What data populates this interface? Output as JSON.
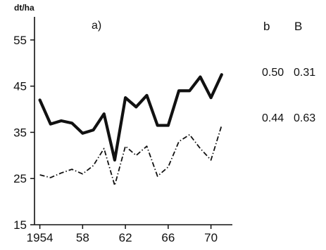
{
  "chart_data": {
    "type": "line",
    "panel_label": "a)",
    "ylabel": "dt/ha",
    "xlabel": "",
    "ylim": [
      15,
      60
    ],
    "xlim": [
      1953.5,
      1972
    ],
    "y_ticks": [
      15,
      25,
      35,
      45,
      55
    ],
    "y_tick_labels": [
      "15",
      "25",
      "35",
      "45",
      "55"
    ],
    "x_ticks": [
      1954,
      1958,
      1962,
      1966,
      1970
    ],
    "x_tick_labels": [
      "1954",
      "58",
      "62",
      "66",
      "70"
    ],
    "x": [
      1954,
      1955,
      1956,
      1957,
      1958,
      1959,
      1960,
      1961,
      1962,
      1963,
      1964,
      1965,
      1966,
      1967,
      1968,
      1969,
      1970,
      1971
    ],
    "series": [
      {
        "style": "solid-thick",
        "values": [
          42,
          36.8,
          37.5,
          37,
          34.8,
          35.5,
          39,
          29,
          42.5,
          40.5,
          43,
          36.5,
          36.5,
          44,
          44,
          47,
          42.5,
          47.5
        ]
      },
      {
        "style": "dash-dot",
        "values": [
          25.8,
          25.2,
          26.2,
          27,
          26,
          27.8,
          31.5,
          23.5,
          32,
          30,
          32,
          25.5,
          27.5,
          33,
          34.5,
          31.5,
          29,
          36.5
        ]
      }
    ],
    "stats_table": {
      "headers": [
        "b",
        "B"
      ],
      "rows": [
        {
          "series": 0,
          "b": "0.50",
          "B": "0.31"
        },
        {
          "series": 1,
          "b": "0.44",
          "B": "0.63"
        }
      ]
    },
    "grid": false,
    "legend": "none"
  }
}
